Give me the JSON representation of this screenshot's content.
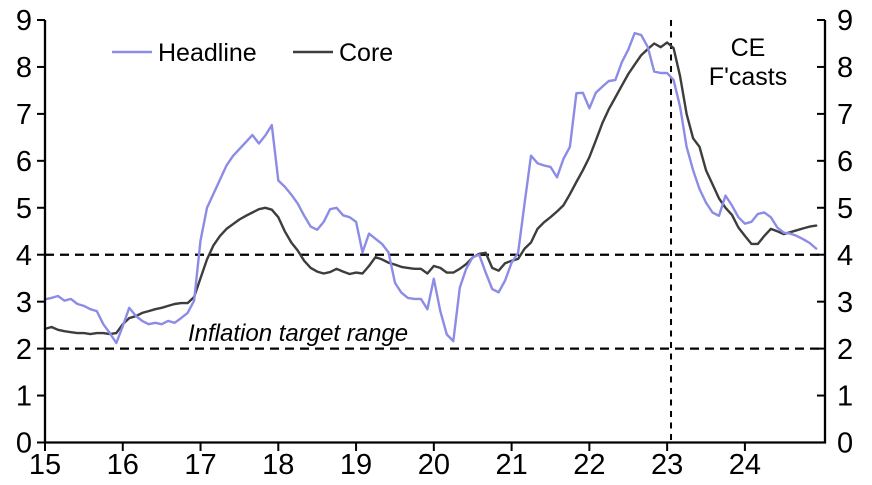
{
  "chart_data": {
    "type": "line",
    "title": "",
    "xlabel": "",
    "ylabel": "",
    "x_axis": {
      "tick_values": [
        15,
        16,
        17,
        18,
        19,
        20,
        21,
        22,
        23,
        24
      ],
      "tick_labels": [
        "15",
        "16",
        "17",
        "18",
        "19",
        "20",
        "21",
        "22",
        "23",
        "24"
      ],
      "range": [
        15,
        25.03
      ]
    },
    "y_axis": {
      "tick_values": [
        0,
        1,
        2,
        3,
        4,
        5,
        6,
        7,
        8,
        9
      ],
      "tick_labels": [
        "0",
        "1",
        "2",
        "3",
        "4",
        "5",
        "6",
        "7",
        "8",
        "9"
      ],
      "range": [
        0,
        9
      ],
      "sides": "both"
    },
    "x_start_year": 15.0,
    "x_interval": "monthly",
    "grid": false,
    "legend": {
      "position": "top-left"
    },
    "series": [
      {
        "name": "Headline",
        "color": "#8c8ce6",
        "values": [
          3.05,
          3.08,
          3.12,
          3.02,
          3.06,
          2.95,
          2.91,
          2.84,
          2.8,
          2.52,
          2.33,
          2.12,
          2.48,
          2.87,
          2.7,
          2.59,
          2.52,
          2.55,
          2.52,
          2.59,
          2.55,
          2.65,
          2.76,
          3.02,
          4.3,
          5.0,
          5.3,
          5.6,
          5.9,
          6.1,
          6.25,
          6.4,
          6.55,
          6.37,
          6.54,
          6.76,
          5.58,
          5.45,
          5.28,
          5.09,
          4.83,
          4.6,
          4.53,
          4.7,
          4.97,
          5.0,
          4.84,
          4.8,
          4.7,
          4.05,
          4.45,
          4.34,
          4.23,
          4.05,
          3.4,
          3.19,
          3.08,
          3.06,
          3.06,
          2.84,
          3.49,
          2.8,
          2.3,
          2.16,
          3.3,
          3.7,
          3.95,
          4.0,
          3.62,
          3.27,
          3.2,
          3.45,
          3.83,
          4.04,
          5.1,
          6.11,
          5.95,
          5.9,
          5.87,
          5.65,
          6.04,
          6.3,
          7.44,
          7.45,
          7.12,
          7.45,
          7.58,
          7.7,
          7.72,
          8.1,
          8.37,
          8.72,
          8.68,
          8.43,
          7.9,
          7.87,
          7.87,
          7.72,
          7.15,
          6.3,
          5.8,
          5.4,
          5.11,
          4.9,
          4.83,
          5.26,
          5.05,
          4.8,
          4.66,
          4.7,
          4.87,
          4.9,
          4.8,
          4.58,
          4.47,
          4.45,
          4.4,
          4.33,
          4.25,
          4.13
        ]
      },
      {
        "name": "Core",
        "color": "#3d3d3d",
        "values": [
          2.42,
          2.46,
          2.4,
          2.37,
          2.35,
          2.33,
          2.33,
          2.31,
          2.33,
          2.33,
          2.31,
          2.33,
          2.52,
          2.65,
          2.69,
          2.76,
          2.8,
          2.84,
          2.87,
          2.91,
          2.95,
          2.97,
          2.97,
          3.1,
          3.5,
          3.9,
          4.2,
          4.4,
          4.55,
          4.65,
          4.75,
          4.83,
          4.9,
          4.97,
          5.0,
          4.96,
          4.8,
          4.5,
          4.26,
          4.09,
          3.87,
          3.72,
          3.64,
          3.6,
          3.63,
          3.7,
          3.64,
          3.59,
          3.62,
          3.6,
          3.76,
          3.95,
          3.9,
          3.83,
          3.79,
          3.74,
          3.72,
          3.7,
          3.7,
          3.6,
          3.76,
          3.72,
          3.62,
          3.62,
          3.7,
          3.8,
          3.94,
          4.02,
          4.04,
          3.72,
          3.66,
          3.82,
          3.87,
          3.91,
          4.13,
          4.26,
          4.55,
          4.69,
          4.8,
          4.92,
          5.05,
          5.29,
          5.55,
          5.8,
          6.08,
          6.43,
          6.8,
          7.1,
          7.35,
          7.6,
          7.85,
          8.05,
          8.25,
          8.38,
          8.5,
          8.42,
          8.52,
          8.4,
          7.8,
          7.0,
          6.48,
          6.3,
          5.8,
          5.5,
          5.2,
          5.0,
          4.85,
          4.58,
          4.4,
          4.23,
          4.23,
          4.4,
          4.55,
          4.5,
          4.44,
          4.48,
          4.52,
          4.56,
          4.6,
          4.62
        ]
      }
    ],
    "reference_lines": [
      {
        "axis": "y",
        "value": 2,
        "style": "dashed",
        "color": "#000000"
      },
      {
        "axis": "y",
        "value": 4,
        "style": "dashed",
        "color": "#000000"
      },
      {
        "axis": "x",
        "value": 23.05,
        "style": "dashed",
        "color": "#000000"
      }
    ],
    "annotations": [
      {
        "text": "Inflation target range",
        "style": "italic",
        "x_year": 16.85,
        "y_value": 2.1
      },
      {
        "text": "CE F'casts",
        "x_year": 24.0,
        "y_value": 8.4
      }
    ]
  },
  "legend": {
    "headline_label": "Headline",
    "core_label": "Core"
  },
  "annotation_text": {
    "target_range": "Inflation target range",
    "forecast_line1": "CE",
    "forecast_line2": "F'casts"
  },
  "colors": {
    "headline": "#8c8ce6",
    "core": "#3d3d3d",
    "axis": "#000000",
    "background": "#ffffff"
  }
}
